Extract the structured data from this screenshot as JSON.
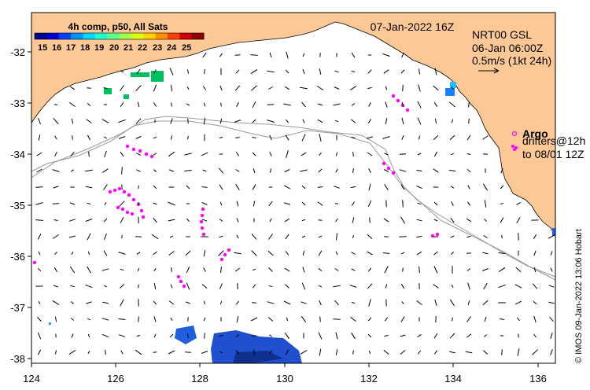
{
  "map": {
    "date_title": "07-Jan-2022 16Z",
    "composite_label": "4h comp, p50, All Sats",
    "colorbar_ticks": [
      "15",
      "16",
      "17",
      "18",
      "19",
      "20",
      "21",
      "22",
      "23",
      "24",
      "25"
    ],
    "colorbar_colors": [
      "#00008f",
      "#0000d0",
      "#0040ff",
      "#0090ff",
      "#00d8ff",
      "#20ffd0",
      "#60ff90",
      "#a0ff50",
      "#e0ff10",
      "#ffd000",
      "#ff9000",
      "#ff4000",
      "#d00000",
      "#8f0000"
    ],
    "current_source": "NRT00 GSL",
    "current_time": "06-Jan 06:00Z",
    "scale_text": "0.5m/s (1kt 24h)",
    "argo_label": "Argo",
    "drifters_line1": "drifters@12h",
    "drifters_line2": "to 08/01 12Z",
    "credit": "© IMOS 09-Jan-2022 13:06 Hobart",
    "x_ticks": [
      "124",
      "126",
      "128",
      "130",
      "132",
      "134",
      "136"
    ],
    "y_ticks": [
      "-32",
      "-33",
      "-34",
      "-35",
      "-36",
      "-37",
      "-38"
    ],
    "lon_range": [
      124,
      136.4
    ],
    "lat_range": [
      -38.1,
      -31.3
    ],
    "land_color": "#fcc996",
    "drifter_color": "#ff00ff",
    "isobath_color": "#999999"
  }
}
